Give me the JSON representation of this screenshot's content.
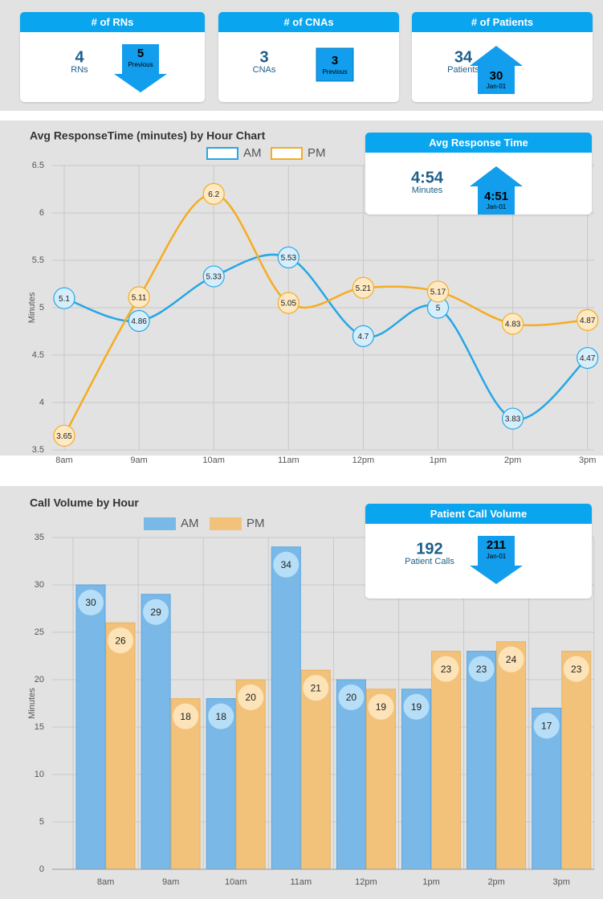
{
  "cards": [
    {
      "title": "# of RNs",
      "value": "4",
      "label": "RNs",
      "compare_value": "5",
      "compare_label": "Previous"
    },
    {
      "title": "# of CNAs",
      "value": "3",
      "label": "CNAs",
      "compare_value": "3",
      "compare_label": "Previous"
    },
    {
      "title": "# of Patients",
      "value": "34",
      "label": "Patients",
      "compare_value": "30",
      "compare_label": "Jan-01"
    },
    {
      "title": "Avg Response Time",
      "value": "4:54",
      "label": "Minutes",
      "compare_value": "4:51",
      "compare_label": "Jan-01"
    },
    {
      "title": "Patient Call Volume",
      "value": "192",
      "label": "Patient Calls",
      "compare_value": "211",
      "compare_label": "Jan-01"
    }
  ],
  "chart_data": [
    {
      "type": "line",
      "title": "Avg ResponseTime (minutes) by Hour Chart",
      "y_label": "Minutes",
      "categories": [
        "8am",
        "9am",
        "10am",
        "11am",
        "12pm",
        "1pm",
        "2pm",
        "3pm"
      ],
      "series": [
        {
          "name": "AM",
          "color": "#27a6e5",
          "values": [
            5.1,
            4.86,
            5.33,
            5.53,
            4.7,
            5,
            3.83,
            4.47
          ]
        },
        {
          "name": "PM",
          "color": "#f5ac23",
          "values": [
            3.65,
            5.11,
            6.2,
            5.05,
            5.21,
            5.17,
            4.83,
            4.87
          ]
        }
      ],
      "ylim": [
        3.5,
        6.5
      ],
      "yticks": [
        3.5,
        4,
        4.5,
        5,
        5.5,
        6,
        6.5
      ],
      "grid": true
    },
    {
      "type": "bar",
      "title": "Call Volume by Hour",
      "y_label": "Minutes",
      "categories": [
        "8am",
        "9am",
        "10am",
        "11am",
        "12pm",
        "1pm",
        "2pm",
        "3pm"
      ],
      "series": [
        {
          "name": "AM",
          "color": "#7ab8e8",
          "values": [
            30,
            29,
            18,
            34,
            20,
            19,
            23,
            17
          ]
        },
        {
          "name": "PM",
          "color": "#f2c27a",
          "values": [
            26,
            18,
            20,
            21,
            19,
            23,
            24,
            23
          ]
        }
      ],
      "ylim": [
        0,
        35
      ],
      "yticks": [
        0,
        5,
        10,
        15,
        20,
        25,
        30,
        35
      ],
      "grid": true
    }
  ]
}
